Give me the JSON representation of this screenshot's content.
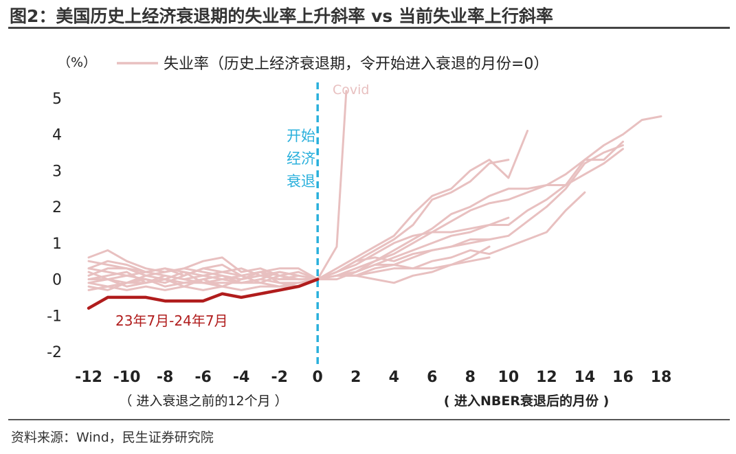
{
  "figure_title": "图2：美国历史上经济衰退期的失业率上升斜率 vs 当前失业率上行斜率",
  "source": "资料来源：Wind，民生证券研究院",
  "colors": {
    "historical": "#e8c0c0",
    "current": "#b01c1c",
    "recession_line": "#2ab0dc",
    "text": "#222222"
  },
  "chart_data": {
    "type": "line",
    "y_unit": "（%）",
    "ylim": [
      -2,
      5
    ],
    "xlim": [
      -12,
      18
    ],
    "x_ticks": [
      -12,
      -10,
      -8,
      -6,
      -4,
      -2,
      0,
      2,
      4,
      6,
      8,
      10,
      12,
      14,
      16,
      18
    ],
    "y_ticks": [
      -2,
      -1,
      0,
      1,
      2,
      3,
      4,
      5
    ],
    "x_sublabel_left": "（ 进入衰退之前的12个月 ）",
    "x_sublabel_right": "( 进入NBER衰退后的月份 )",
    "legend": "失业率（历史上经济衰退期，令开始进入衰退的月份=0）",
    "recession_start_x": 0,
    "recession_label": [
      "开始",
      "经济",
      "衰退"
    ],
    "grid": false,
    "historical_series": [
      {
        "points": [
          [
            -12,
            0.6
          ],
          [
            -11,
            0.8
          ],
          [
            -10,
            0.5
          ],
          [
            -9,
            0.3
          ],
          [
            -8,
            0.2
          ],
          [
            -7,
            0.3
          ],
          [
            -6,
            0.2
          ],
          [
            -5,
            0.1
          ],
          [
            -4,
            0.0
          ],
          [
            -3,
            0.1
          ],
          [
            -2,
            0.0
          ],
          [
            -1,
            0.0
          ],
          [
            0,
            0
          ],
          [
            1,
            0.2
          ],
          [
            2,
            0.5
          ],
          [
            3,
            0.8
          ],
          [
            4,
            1.1
          ],
          [
            5,
            1.5
          ],
          [
            6,
            2.2
          ],
          [
            7,
            2.4
          ],
          [
            8,
            2.7
          ],
          [
            9,
            3.2
          ],
          [
            10,
            3.3
          ]
        ]
      },
      {
        "points": [
          [
            -12,
            0.3
          ],
          [
            -11,
            0.5
          ],
          [
            -10,
            0.4
          ],
          [
            -9,
            0.2
          ],
          [
            -8,
            0.3
          ],
          [
            -7,
            0.1
          ],
          [
            -6,
            0.3
          ],
          [
            -5,
            0.2
          ],
          [
            -4,
            0.3
          ],
          [
            -3,
            0.1
          ],
          [
            -2,
            0.2
          ],
          [
            -1,
            0.1
          ],
          [
            0,
            0
          ],
          [
            1,
            0.3
          ],
          [
            2,
            0.6
          ],
          [
            3,
            0.9
          ],
          [
            4,
            1.2
          ],
          [
            5,
            1.8
          ],
          [
            6,
            2.3
          ],
          [
            7,
            2.5
          ],
          [
            8,
            3.0
          ],
          [
            9,
            3.3
          ],
          [
            10,
            2.8
          ],
          [
            11,
            4.1
          ]
        ]
      },
      {
        "points": [
          [
            -12,
            0.1
          ],
          [
            -11,
            0.3
          ],
          [
            -10,
            0.3
          ],
          [
            -9,
            0.1
          ],
          [
            -8,
            0.2
          ],
          [
            -7,
            0.3
          ],
          [
            -6,
            0.5
          ],
          [
            -5,
            0.6
          ],
          [
            -4,
            0.2
          ],
          [
            -3,
            0.3
          ],
          [
            -2,
            0.1
          ],
          [
            -1,
            0.2
          ],
          [
            0,
            0
          ],
          [
            1,
            0.1
          ],
          [
            2,
            0.3
          ],
          [
            3,
            0.5
          ],
          [
            4,
            0.8
          ],
          [
            5,
            1.1
          ],
          [
            6,
            1.4
          ],
          [
            7,
            1.8
          ],
          [
            8,
            2.0
          ],
          [
            9,
            2.3
          ],
          [
            10,
            2.5
          ],
          [
            11,
            2.5
          ],
          [
            12,
            2.6
          ],
          [
            13,
            2.9
          ],
          [
            14,
            3.3
          ],
          [
            15,
            3.7
          ],
          [
            16,
            4.0
          ],
          [
            17,
            4.4
          ],
          [
            18,
            4.5
          ]
        ]
      },
      {
        "points": [
          [
            -12,
            -0.1
          ],
          [
            -11,
            0.0
          ],
          [
            -10,
            0.1
          ],
          [
            -9,
            0.0
          ],
          [
            -8,
            -0.1
          ],
          [
            -7,
            0.1
          ],
          [
            -6,
            0.3
          ],
          [
            -5,
            0.4
          ],
          [
            -4,
            0.1
          ],
          [
            -3,
            0.2
          ],
          [
            -2,
            0.3
          ],
          [
            -1,
            0.3
          ],
          [
            0,
            0
          ],
          [
            1,
            0.1
          ],
          [
            2,
            0.2
          ],
          [
            3,
            0.5
          ],
          [
            4,
            0.7
          ],
          [
            5,
            1.0
          ],
          [
            6,
            1.3
          ],
          [
            7,
            1.6
          ],
          [
            8,
            1.9
          ],
          [
            9,
            2.1
          ],
          [
            10,
            2.2
          ],
          [
            11,
            2.4
          ],
          [
            12,
            2.6
          ],
          [
            13,
            2.6
          ],
          [
            14,
            2.9
          ],
          [
            15,
            3.2
          ],
          [
            16,
            3.6
          ]
        ]
      },
      {
        "points": [
          [
            -12,
            -0.3
          ],
          [
            -11,
            -0.2
          ],
          [
            -10,
            -0.1
          ],
          [
            -9,
            0.1
          ],
          [
            -8,
            0.0
          ],
          [
            -7,
            -0.2
          ],
          [
            -6,
            0.0
          ],
          [
            -5,
            0.1
          ],
          [
            -4,
            -0.1
          ],
          [
            -3,
            0.0
          ],
          [
            -2,
            0.2
          ],
          [
            -1,
            0.1
          ],
          [
            0,
            0
          ],
          [
            1,
            0.0
          ],
          [
            2,
            0.2
          ],
          [
            3,
            0.4
          ],
          [
            4,
            0.6
          ],
          [
            5,
            0.8
          ],
          [
            6,
            1.0
          ],
          [
            7,
            1.2
          ],
          [
            8,
            1.3
          ],
          [
            9,
            1.5
          ],
          [
            10,
            1.7
          ]
        ]
      },
      {
        "points": [
          [
            -12,
            0.2
          ],
          [
            -11,
            0.0
          ],
          [
            -10,
            -0.2
          ],
          [
            -9,
            -0.1
          ],
          [
            -8,
            0.1
          ],
          [
            -7,
            0.0
          ],
          [
            -6,
            -0.1
          ],
          [
            -5,
            0.0
          ],
          [
            -4,
            0.1
          ],
          [
            -3,
            -0.1
          ],
          [
            -2,
            0.1
          ],
          [
            -1,
            0.0
          ],
          [
            0,
            0
          ],
          [
            1,
            0.2
          ],
          [
            2,
            0.4
          ],
          [
            3,
            0.7
          ],
          [
            4,
            1.0
          ],
          [
            5,
            1.2
          ],
          [
            6,
            1.3
          ],
          [
            7,
            1.3
          ],
          [
            8,
            1.4
          ],
          [
            9,
            1.5
          ],
          [
            10,
            1.5
          ],
          [
            11,
            1.9
          ],
          [
            12,
            2.2
          ],
          [
            13,
            2.6
          ],
          [
            14,
            3.3
          ],
          [
            15,
            3.3
          ],
          [
            16,
            3.8
          ]
        ]
      },
      {
        "points": [
          [
            -12,
            -0.2
          ],
          [
            -11,
            -0.3
          ],
          [
            -10,
            -0.1
          ],
          [
            -9,
            0.0
          ],
          [
            -8,
            -0.2
          ],
          [
            -7,
            -0.1
          ],
          [
            -6,
            0.0
          ],
          [
            -5,
            -0.2
          ],
          [
            -4,
            0.0
          ],
          [
            -3,
            0.2
          ],
          [
            -2,
            -0.1
          ],
          [
            -1,
            -0.2
          ],
          [
            0,
            0
          ],
          [
            1,
            0.1
          ],
          [
            2,
            0.1
          ],
          [
            3,
            0.3
          ],
          [
            4,
            0.4
          ],
          [
            5,
            0.6
          ],
          [
            6,
            0.8
          ],
          [
            7,
            0.9
          ],
          [
            8,
            1.1
          ],
          [
            9,
            1.1
          ],
          [
            10,
            1.2
          ],
          [
            11,
            1.6
          ],
          [
            12,
            2.0
          ],
          [
            13,
            2.5
          ],
          [
            14,
            3.2
          ],
          [
            15,
            3.5
          ],
          [
            16,
            3.7
          ]
        ]
      },
      {
        "points": [
          [
            -12,
            0.0
          ],
          [
            -11,
            0.1
          ],
          [
            -10,
            0.2
          ],
          [
            -9,
            -0.1
          ],
          [
            -8,
            0.0
          ],
          [
            -7,
            0.2
          ],
          [
            -6,
            -0.1
          ],
          [
            -5,
            -0.2
          ],
          [
            -4,
            0.0
          ],
          [
            -3,
            0.1
          ],
          [
            -2,
            0.0
          ],
          [
            -1,
            0.1
          ],
          [
            0,
            0
          ],
          [
            1,
            0.1
          ],
          [
            2,
            0.1
          ],
          [
            3,
            0.2
          ],
          [
            4,
            0.3
          ],
          [
            5,
            0.3
          ],
          [
            6,
            0.5
          ],
          [
            7,
            0.6
          ],
          [
            8,
            0.8
          ],
          [
            9,
            0.7
          ],
          [
            10,
            0.9
          ],
          [
            11,
            1.1
          ],
          [
            12,
            1.3
          ],
          [
            13,
            1.9
          ],
          [
            14,
            2.4
          ]
        ]
      },
      {
        "points": [
          [
            -12,
            -0.1
          ],
          [
            -11,
            -0.2
          ],
          [
            -10,
            -0.3
          ],
          [
            -9,
            -0.2
          ],
          [
            -8,
            -0.3
          ],
          [
            -7,
            -0.2
          ],
          [
            -6,
            -0.3
          ],
          [
            -5,
            -0.2
          ],
          [
            -4,
            -0.3
          ],
          [
            -3,
            -0.2
          ],
          [
            -2,
            -0.2
          ],
          [
            -1,
            -0.1
          ],
          [
            0,
            0
          ],
          [
            1,
            0.1
          ],
          [
            2,
            0.2
          ],
          [
            3,
            0.4
          ],
          [
            4,
            0.4
          ],
          [
            5,
            0.3
          ],
          [
            6,
            0.3
          ],
          [
            7,
            0.4
          ],
          [
            8,
            0.5
          ],
          [
            9,
            0.6
          ]
        ]
      },
      {
        "points": [
          [
            -12,
            0.5
          ],
          [
            -11,
            0.4
          ],
          [
            -10,
            0.3
          ],
          [
            -9,
            0.2
          ],
          [
            -8,
            0.3
          ],
          [
            -7,
            0.2
          ],
          [
            -6,
            0.1
          ],
          [
            -5,
            0.2
          ],
          [
            -4,
            0.1
          ],
          [
            -3,
            0.2
          ],
          [
            -2,
            0.1
          ],
          [
            -1,
            0.0
          ],
          [
            0,
            0
          ],
          [
            1,
            0.2
          ],
          [
            2,
            0.5
          ],
          [
            3,
            0.6
          ],
          [
            4,
            0.5
          ],
          [
            5,
            0.7
          ],
          [
            6,
            0.8
          ],
          [
            7,
            0.9
          ],
          [
            8,
            1.0
          ],
          [
            9,
            1.1
          ]
        ]
      },
      {
        "points": [
          [
            -12,
            0.3
          ],
          [
            -11,
            0.2
          ],
          [
            -10,
            0.1
          ],
          [
            -9,
            0.2
          ],
          [
            -8,
            0.1
          ],
          [
            -7,
            0.0
          ],
          [
            -6,
            0.1
          ],
          [
            -5,
            0.0
          ],
          [
            -4,
            -0.1
          ],
          [
            -3,
            0.0
          ],
          [
            -2,
            -0.1
          ],
          [
            -1,
            -0.1
          ],
          [
            0,
            0
          ],
          [
            1,
            0.1
          ],
          [
            2,
            0.1
          ],
          [
            3,
            0.0
          ],
          [
            4,
            -0.1
          ],
          [
            5,
            0.1
          ],
          [
            6,
            0.2
          ],
          [
            7,
            0.4
          ],
          [
            8,
            0.6
          ],
          [
            9,
            0.9
          ]
        ]
      }
    ],
    "covid_series": {
      "label": "Covid",
      "points": [
        [
          -12,
          0.0
        ],
        [
          -11,
          0.0
        ],
        [
          -10,
          -0.1
        ],
        [
          -9,
          -0.1
        ],
        [
          -8,
          0.0
        ],
        [
          -7,
          -0.1
        ],
        [
          -6,
          -0.1
        ],
        [
          -5,
          -0.1
        ],
        [
          -4,
          -0.1
        ],
        [
          -3,
          -0.1
        ],
        [
          -2,
          -0.2
        ],
        [
          -1,
          -0.2
        ],
        [
          0,
          0
        ],
        [
          1,
          0.9
        ],
        [
          1.5,
          5.2
        ]
      ]
    },
    "current_series": {
      "label": "23年7月-24年7月",
      "points": [
        [
          -12,
          -0.8
        ],
        [
          -11,
          -0.5
        ],
        [
          -10,
          -0.5
        ],
        [
          -9,
          -0.5
        ],
        [
          -8,
          -0.6
        ],
        [
          -7,
          -0.6
        ],
        [
          -6,
          -0.6
        ],
        [
          -5,
          -0.4
        ],
        [
          -4,
          -0.5
        ],
        [
          -3,
          -0.4
        ],
        [
          -2,
          -0.3
        ],
        [
          -1,
          -0.2
        ],
        [
          0,
          0.0
        ]
      ]
    }
  }
}
